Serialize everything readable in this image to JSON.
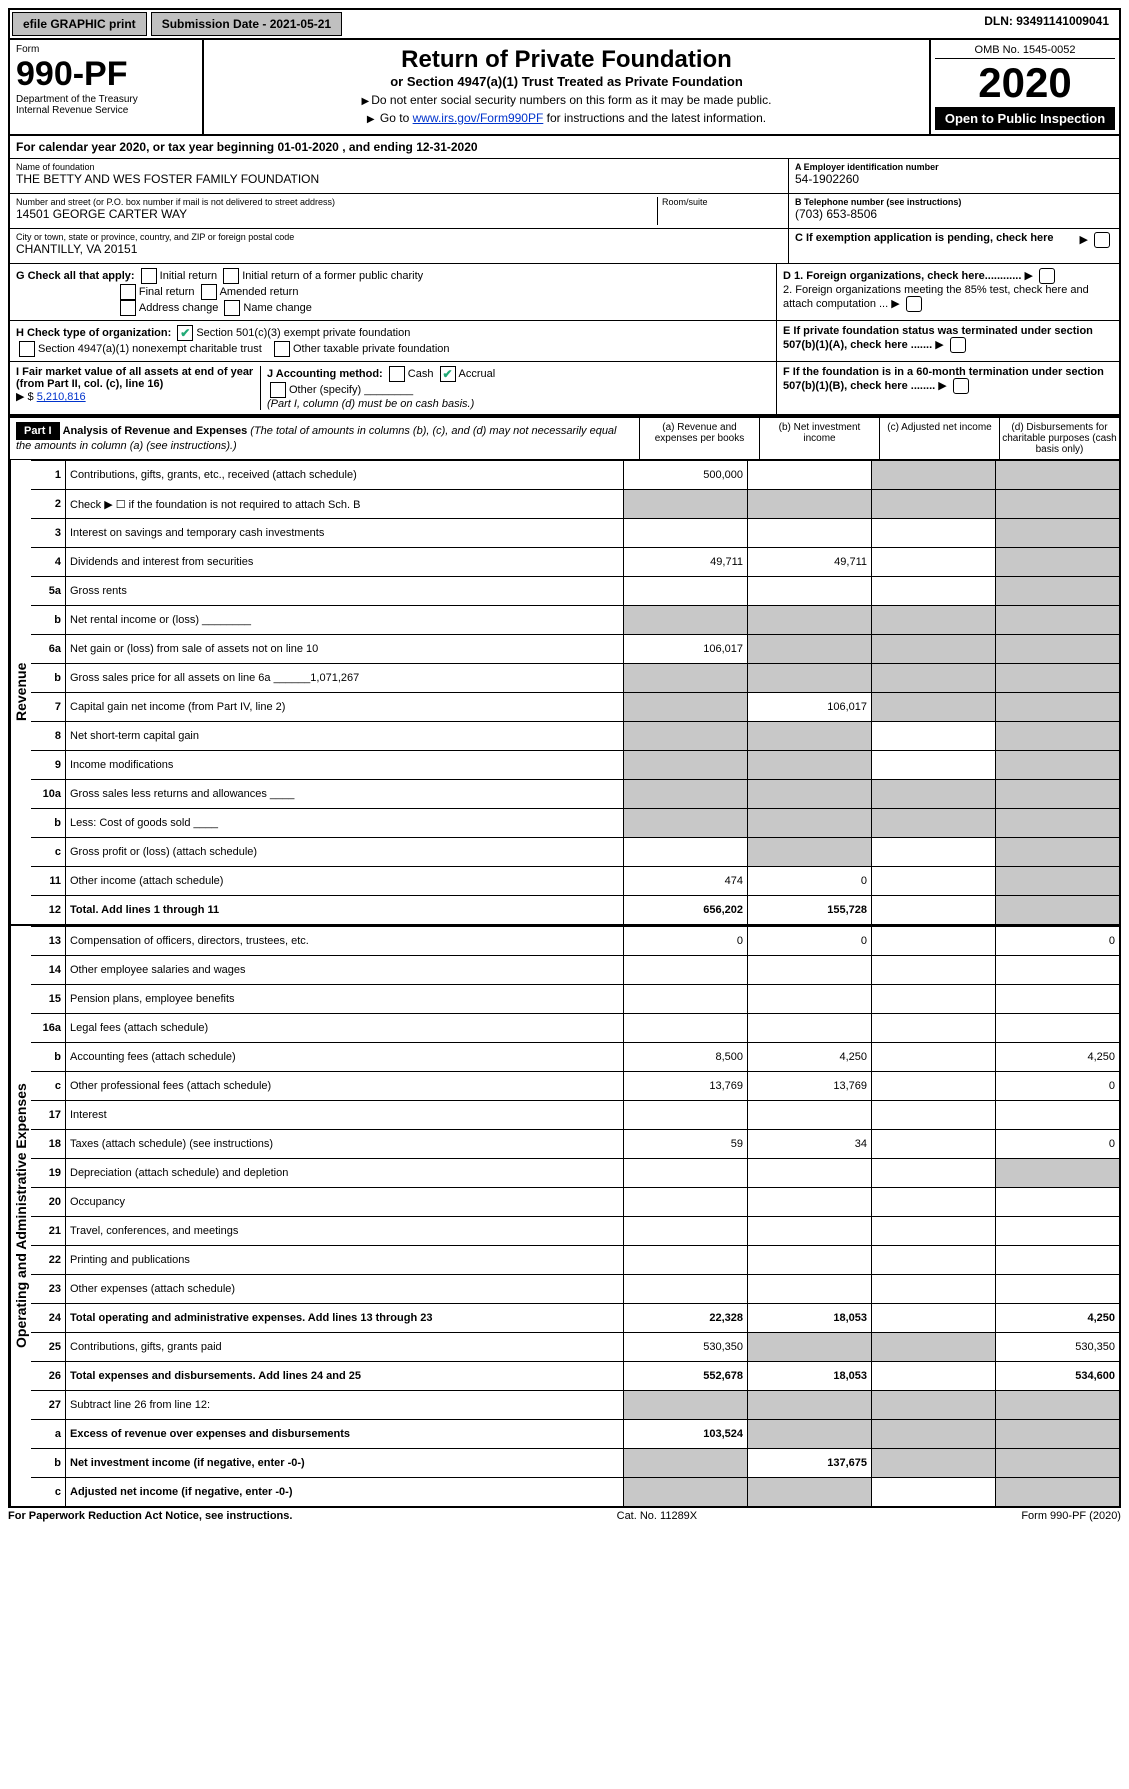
{
  "topbar": {
    "efile": "efile GRAPHIC print",
    "submission": "Submission Date - 2021-05-21",
    "dln": "DLN: 93491141009041"
  },
  "header": {
    "form_label": "Form",
    "form_no": "990-PF",
    "dept": "Department of the Treasury",
    "irs": "Internal Revenue Service",
    "title": "Return of Private Foundation",
    "subtitle": "or Section 4947(a)(1) Trust Treated as Private Foundation",
    "note1": "Do not enter social security numbers on this form as it may be made public.",
    "note2_pre": "Go to ",
    "note2_link": "www.irs.gov/Form990PF",
    "note2_post": " for instructions and the latest information.",
    "omb": "OMB No. 1545-0052",
    "year": "2020",
    "open": "Open to Public Inspection"
  },
  "calendar": {
    "text_pre": "For calendar year 2020, or tax year beginning ",
    "begin": "01-01-2020",
    "text_mid": " , and ending ",
    "end": "12-31-2020"
  },
  "entity": {
    "name_label": "Name of foundation",
    "name": "THE BETTY AND WES FOSTER FAMILY FOUNDATION",
    "addr_label": "Number and street (or P.O. box number if mail is not delivered to street address)",
    "addr": "14501 GEORGE CARTER WAY",
    "room_label": "Room/suite",
    "city_label": "City or town, state or province, country, and ZIP or foreign postal code",
    "city": "CHANTILLY, VA  20151",
    "a_label": "A Employer identification number",
    "ein": "54-1902260",
    "b_label": "B Telephone number (see instructions)",
    "phone": "(703) 653-8506",
    "c_label": "C If exemption application is pending, check here"
  },
  "g": {
    "label": "G Check all that apply:",
    "o1": "Initial return",
    "o2": "Initial return of a former public charity",
    "o3": "Final return",
    "o4": "Amended return",
    "o5": "Address change",
    "o6": "Name change"
  },
  "h": {
    "label": "H Check type of organization:",
    "o1": "Section 501(c)(3) exempt private foundation",
    "o2": "Section 4947(a)(1) nonexempt charitable trust",
    "o3": "Other taxable private foundation"
  },
  "i": {
    "label": "I Fair market value of all assets at end of year (from Part II, col. (c), line 16)",
    "val_label": "$",
    "val": "5,210,816"
  },
  "j": {
    "label": "J Accounting method:",
    "cash": "Cash",
    "accrual": "Accrual",
    "other": "Other (specify)",
    "note": "(Part I, column (d) must be on cash basis.)"
  },
  "d": {
    "d1": "D 1. Foreign organizations, check here............",
    "d2": "2. Foreign organizations meeting the 85% test, check here and attach computation ...",
    "e": "E  If private foundation status was terminated under section 507(b)(1)(A), check here .......",
    "f": "F  If the foundation is in a 60-month termination under section 507(b)(1)(B), check here ........"
  },
  "part1": {
    "label": "Part I",
    "title": "Analysis of Revenue and Expenses",
    "note": "(The total of amounts in columns (b), (c), and (d) may not necessarily equal the amounts in column (a) (see instructions).)",
    "col_a": "(a)   Revenue and expenses per books",
    "col_b": "(b)  Net investment income",
    "col_c": "(c)  Adjusted net income",
    "col_d": "(d)  Disbursements for charitable purposes (cash basis only)"
  },
  "vlabels": {
    "rev": "Revenue",
    "exp": "Operating and Administrative Expenses"
  },
  "lines": [
    {
      "n": "1",
      "d": "Contributions, gifts, grants, etc., received (attach schedule)",
      "a": "500,000",
      "b": "",
      "c": "shade",
      "e": "shade"
    },
    {
      "n": "2",
      "d": "Check ▶ ☐ if the foundation is not required to attach Sch. B",
      "a": "shade",
      "b": "shade",
      "c": "shade",
      "e": "shade"
    },
    {
      "n": "3",
      "d": "Interest on savings and temporary cash investments",
      "a": "",
      "b": "",
      "c": "",
      "e": "shade"
    },
    {
      "n": "4",
      "d": "Dividends and interest from securities",
      "a": "49,711",
      "b": "49,711",
      "c": "",
      "e": "shade"
    },
    {
      "n": "5a",
      "d": "Gross rents",
      "a": "",
      "b": "",
      "c": "",
      "e": "shade"
    },
    {
      "n": "b",
      "d": "Net rental income or (loss)  ________",
      "a": "shade",
      "b": "shade",
      "c": "shade",
      "e": "shade"
    },
    {
      "n": "6a",
      "d": "Net gain or (loss) from sale of assets not on line 10",
      "a": "106,017",
      "b": "shade",
      "c": "shade",
      "e": "shade"
    },
    {
      "n": "b",
      "d": "Gross sales price for all assets on line 6a ______1,071,267",
      "a": "shade",
      "b": "shade",
      "c": "shade",
      "e": "shade"
    },
    {
      "n": "7",
      "d": "Capital gain net income (from Part IV, line 2)",
      "a": "shade",
      "b": "106,017",
      "c": "shade",
      "e": "shade"
    },
    {
      "n": "8",
      "d": "Net short-term capital gain",
      "a": "shade",
      "b": "shade",
      "c": "",
      "e": "shade"
    },
    {
      "n": "9",
      "d": "Income modifications",
      "a": "shade",
      "b": "shade",
      "c": "",
      "e": "shade"
    },
    {
      "n": "10a",
      "d": "Gross sales less returns and allowances  ____",
      "a": "shade",
      "b": "shade",
      "c": "shade",
      "e": "shade"
    },
    {
      "n": "b",
      "d": "Less: Cost of goods sold   ____",
      "a": "shade",
      "b": "shade",
      "c": "shade",
      "e": "shade"
    },
    {
      "n": "c",
      "d": "Gross profit or (loss) (attach schedule)",
      "a": "",
      "b": "shade",
      "c": "",
      "e": "shade"
    },
    {
      "n": "11",
      "d": "Other income (attach schedule)",
      "a": "474",
      "b": "0",
      "c": "",
      "e": "shade"
    },
    {
      "n": "12",
      "d": "Total. Add lines 1 through 11",
      "a": "656,202",
      "b": "155,728",
      "c": "",
      "e": "shade",
      "bold": true
    }
  ],
  "exp_lines": [
    {
      "n": "13",
      "d": "Compensation of officers, directors, trustees, etc.",
      "a": "0",
      "b": "0",
      "c": "",
      "e": "0"
    },
    {
      "n": "14",
      "d": "Other employee salaries and wages",
      "a": "",
      "b": "",
      "c": "",
      "e": ""
    },
    {
      "n": "15",
      "d": "Pension plans, employee benefits",
      "a": "",
      "b": "",
      "c": "",
      "e": ""
    },
    {
      "n": "16a",
      "d": "Legal fees (attach schedule)",
      "a": "",
      "b": "",
      "c": "",
      "e": ""
    },
    {
      "n": "b",
      "d": "Accounting fees (attach schedule)",
      "a": "8,500",
      "b": "4,250",
      "c": "",
      "e": "4,250"
    },
    {
      "n": "c",
      "d": "Other professional fees (attach schedule)",
      "a": "13,769",
      "b": "13,769",
      "c": "",
      "e": "0"
    },
    {
      "n": "17",
      "d": "Interest",
      "a": "",
      "b": "",
      "c": "",
      "e": ""
    },
    {
      "n": "18",
      "d": "Taxes (attach schedule) (see instructions)",
      "a": "59",
      "b": "34",
      "c": "",
      "e": "0"
    },
    {
      "n": "19",
      "d": "Depreciation (attach schedule) and depletion",
      "a": "",
      "b": "",
      "c": "",
      "e": "shade"
    },
    {
      "n": "20",
      "d": "Occupancy",
      "a": "",
      "b": "",
      "c": "",
      "e": ""
    },
    {
      "n": "21",
      "d": "Travel, conferences, and meetings",
      "a": "",
      "b": "",
      "c": "",
      "e": ""
    },
    {
      "n": "22",
      "d": "Printing and publications",
      "a": "",
      "b": "",
      "c": "",
      "e": ""
    },
    {
      "n": "23",
      "d": "Other expenses (attach schedule)",
      "a": "",
      "b": "",
      "c": "",
      "e": ""
    },
    {
      "n": "24",
      "d": "Total operating and administrative expenses. Add lines 13 through 23",
      "a": "22,328",
      "b": "18,053",
      "c": "",
      "e": "4,250",
      "bold": true
    },
    {
      "n": "25",
      "d": "Contributions, gifts, grants paid",
      "a": "530,350",
      "b": "shade",
      "c": "shade",
      "e": "530,350"
    },
    {
      "n": "26",
      "d": "Total expenses and disbursements. Add lines 24 and 25",
      "a": "552,678",
      "b": "18,053",
      "c": "",
      "e": "534,600",
      "bold": true
    },
    {
      "n": "27",
      "d": "Subtract line 26 from line 12:",
      "a": "shade",
      "b": "shade",
      "c": "shade",
      "e": "shade"
    },
    {
      "n": "a",
      "d": "Excess of revenue over expenses and disbursements",
      "a": "103,524",
      "b": "shade",
      "c": "shade",
      "e": "shade",
      "bold": true
    },
    {
      "n": "b",
      "d": "Net investment income (if negative, enter -0-)",
      "a": "shade",
      "b": "137,675",
      "c": "shade",
      "e": "shade",
      "bold": true
    },
    {
      "n": "c",
      "d": "Adjusted net income (if negative, enter -0-)",
      "a": "shade",
      "b": "shade",
      "c": "",
      "e": "shade",
      "bold": true
    }
  ],
  "footer": {
    "left": "For Paperwork Reduction Act Notice, see instructions.",
    "mid": "Cat. No. 11289X",
    "right": "Form 990-PF (2020)"
  }
}
